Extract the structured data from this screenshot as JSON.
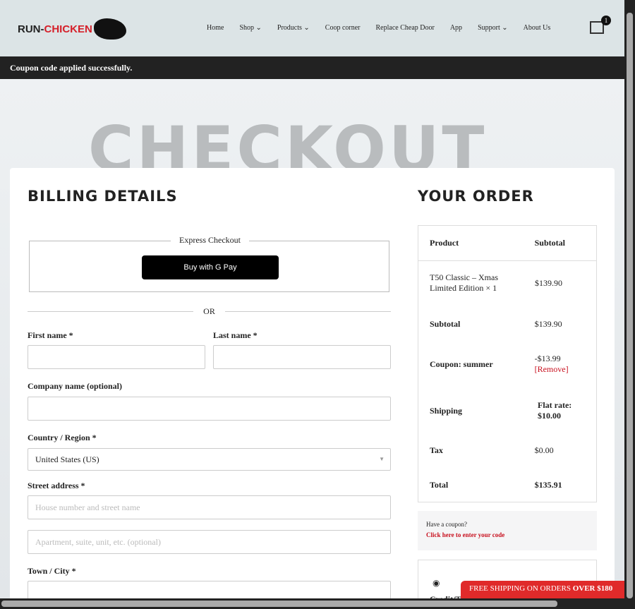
{
  "header": {
    "logo_a": "RUN-",
    "logo_b": "CHICKEN",
    "nav": [
      "Home",
      "Shop ⌄",
      "Products ⌄",
      "Coop corner",
      "Replace Cheap Door",
      "App",
      "Support ⌄",
      "About Us"
    ],
    "cart_count": "1"
  },
  "notice": "Coupon code applied successfully.",
  "hero_title": "CHECKOUT",
  "billing": {
    "title": "BILLING DETAILS",
    "express": "Express Checkout",
    "gpay": "Buy with G Pay",
    "or": "OR",
    "first": "First name *",
    "last": "Last name *",
    "company": "Company name (optional)",
    "country": "Country / Region *",
    "country_value": "United States (US)",
    "street": "Street address *",
    "street_ph": "House number and street name",
    "apt_ph": "Apartment, suite, unit, etc. (optional)",
    "city": "Town / City *"
  },
  "order": {
    "title": "YOUR ORDER",
    "h_product": "Product",
    "h_subtotal": "Subtotal",
    "item": "T50 Classic – Xmas Limited Edition × 1",
    "item_price": "$139.90",
    "subtotal_l": "Subtotal",
    "subtotal": "$139.90",
    "coupon_l": "Coupon: summer",
    "coupon": "-$13.99",
    "remove": "[Remove]",
    "shipping_l": "Shipping",
    "shipping": "Flat rate: $10.00",
    "tax_l": "Tax",
    "tax": "$0.00",
    "total_l": "Total",
    "total": "$135.91"
  },
  "coupon": {
    "q": "Have a coupon?",
    "link": "Click here to enter your code"
  },
  "payment": {
    "method": "Credit/T"
  },
  "shipping_banner": {
    "a": "FREE SHIPPING ON ORDERS ",
    "b": "OVER $180"
  }
}
